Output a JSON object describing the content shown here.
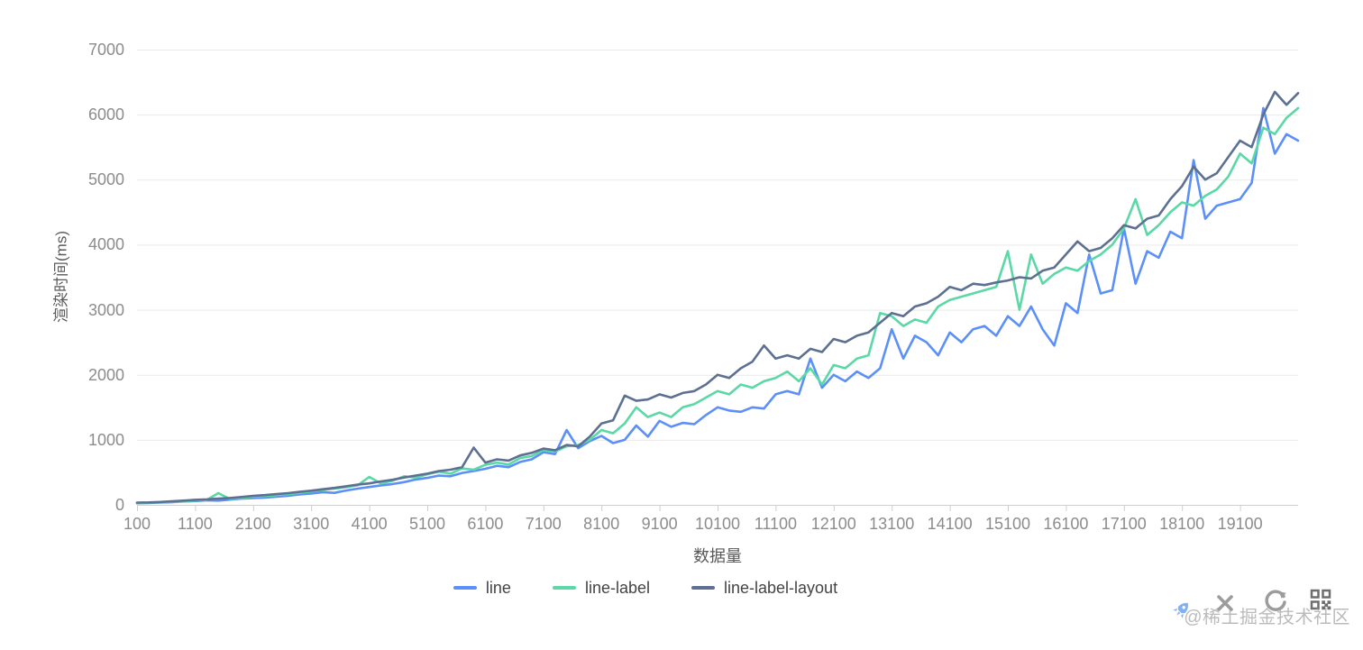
{
  "watermark": {
    "text": "@稀土掘金技术社区"
  },
  "toolbar": {
    "icons": [
      "rocket-icon",
      "close-icon",
      "refresh-icon",
      "qrcode-icon"
    ]
  },
  "colors": {
    "grid": "#e9e9e9",
    "axis_line": "#cfcfcf",
    "tick_label": "#8c8c8c",
    "axis_title": "#595959",
    "legend_label": "#444444",
    "rocket_blue": "#7fb1f4",
    "control_gray": "#9c9c9c",
    "qr_gray": "#6e6e6e"
  },
  "chart_data": {
    "type": "line",
    "title": "",
    "xlabel": "数据量",
    "ylabel": "渲染时间(ms)",
    "xlim": [
      100,
      20100
    ],
    "ylim": [
      0,
      7000
    ],
    "x_ticks": [
      100,
      1100,
      2100,
      3100,
      4100,
      5100,
      6100,
      7100,
      8100,
      9100,
      10100,
      11100,
      12100,
      13100,
      14100,
      15100,
      16100,
      17100,
      18100,
      19100
    ],
    "y_ticks": [
      0,
      1000,
      2000,
      3000,
      4000,
      5000,
      6000,
      7000
    ],
    "grid": "horizontal",
    "legend_position": "bottom",
    "x": [
      100,
      300,
      500,
      700,
      900,
      1100,
      1300,
      1500,
      1700,
      1900,
      2100,
      2300,
      2500,
      2700,
      2900,
      3100,
      3300,
      3500,
      3700,
      3900,
      4100,
      4300,
      4500,
      4700,
      4900,
      5100,
      5300,
      5500,
      5700,
      5900,
      6100,
      6300,
      6500,
      6700,
      6900,
      7100,
      7300,
      7500,
      7700,
      7900,
      8100,
      8300,
      8500,
      8700,
      8900,
      9100,
      9300,
      9500,
      9700,
      9900,
      10100,
      10300,
      10500,
      10700,
      10900,
      11100,
      11300,
      11500,
      11700,
      11900,
      12100,
      12300,
      12500,
      12700,
      12900,
      13100,
      13300,
      13500,
      13700,
      13900,
      14100,
      14300,
      14500,
      14700,
      14900,
      15100,
      15300,
      15500,
      15700,
      15900,
      16100,
      16300,
      16500,
      16700,
      16900,
      17100,
      17300,
      17500,
      17700,
      17900,
      18100,
      18300,
      18500,
      18700,
      18900,
      19100,
      19300,
      19500,
      19700,
      19900,
      20100
    ],
    "series": [
      {
        "name": "line",
        "color": "#5B8FF9",
        "values": [
          25,
          28,
          35,
          40,
          52,
          58,
          70,
          65,
          80,
          95,
          105,
          112,
          125,
          140,
          160,
          175,
          195,
          185,
          220,
          250,
          275,
          300,
          320,
          350,
          390,
          415,
          450,
          440,
          490,
          520,
          555,
          600,
          580,
          660,
          700,
          810,
          780,
          1150,
          870,
          980,
          1060,
          950,
          1000,
          1220,
          1050,
          1290,
          1200,
          1260,
          1240,
          1380,
          1500,
          1450,
          1430,
          1500,
          1480,
          1700,
          1750,
          1700,
          2250,
          1800,
          2000,
          1900,
          2050,
          1950,
          2100,
          2700,
          2250,
          2600,
          2500,
          2300,
          2650,
          2500,
          2700,
          2750,
          2600,
          2900,
          2750,
          3050,
          2700,
          2450,
          3100,
          2950,
          3850,
          3250,
          3300,
          4250,
          3400,
          3900,
          3800,
          4200,
          4100,
          5300,
          4400,
          4600,
          4650,
          4700,
          4950,
          6100,
          5400,
          5700,
          5600
        ]
      },
      {
        "name": "line-label",
        "color": "#5AD8A6",
        "values": [
          30,
          33,
          40,
          48,
          55,
          68,
          75,
          180,
          90,
          105,
          125,
          135,
          150,
          165,
          185,
          205,
          230,
          250,
          270,
          300,
          430,
          330,
          370,
          440,
          420,
          470,
          510,
          480,
          560,
          540,
          615,
          650,
          620,
          720,
          750,
          845,
          820,
          900,
          920,
          1000,
          1150,
          1100,
          1250,
          1500,
          1350,
          1420,
          1350,
          1500,
          1550,
          1650,
          1750,
          1700,
          1850,
          1800,
          1900,
          1950,
          2050,
          1900,
          2100,
          1850,
          2150,
          2100,
          2250,
          2300,
          2950,
          2900,
          2750,
          2850,
          2800,
          3050,
          3150,
          3200,
          3250,
          3300,
          3350,
          3900,
          3000,
          3850,
          3400,
          3550,
          3650,
          3600,
          3750,
          3850,
          4000,
          4250,
          4700,
          4150,
          4300,
          4500,
          4650,
          4600,
          4750,
          4850,
          5050,
          5400,
          5250,
          5800,
          5700,
          5950,
          6100
        ]
      },
      {
        "name": "line-label-layout",
        "color": "#5D7092",
        "values": [
          35,
          38,
          45,
          55,
          65,
          78,
          85,
          95,
          105,
          120,
          138,
          150,
          165,
          180,
          200,
          218,
          240,
          260,
          285,
          310,
          330,
          360,
          385,
          420,
          450,
          480,
          520,
          540,
          580,
          880,
          650,
          700,
          680,
          760,
          800,
          865,
          840,
          920,
          900,
          1050,
          1250,
          1300,
          1680,
          1600,
          1620,
          1700,
          1650,
          1720,
          1750,
          1850,
          2000,
          1950,
          2100,
          2200,
          2450,
          2250,
          2300,
          2250,
          2400,
          2350,
          2550,
          2500,
          2600,
          2650,
          2800,
          2950,
          2900,
          3050,
          3100,
          3200,
          3350,
          3300,
          3400,
          3380,
          3420,
          3450,
          3500,
          3480,
          3600,
          3650,
          3850,
          4050,
          3900,
          3950,
          4100,
          4300,
          4250,
          4400,
          4450,
          4700,
          4900,
          5200,
          5000,
          5100,
          5350,
          5600,
          5500,
          6000,
          6350,
          6150,
          6330
        ]
      }
    ]
  }
}
